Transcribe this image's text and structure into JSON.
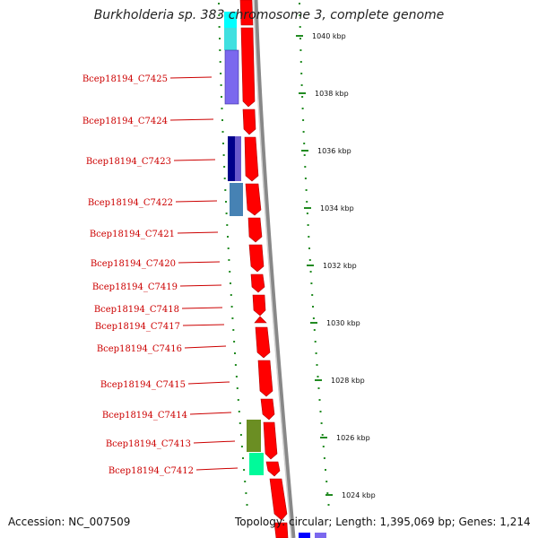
{
  "title": "Burkholderia sp. 383 chromosome 3, complete genome",
  "footer": {
    "accession": "Accession: NC_007509",
    "topology": "Topology: circular; Length: 1,395,069 bp; Genes: 1,214"
  },
  "gene_labels": [
    "Bcep18194_C7425",
    "Bcep18194_C7424",
    "Bcep18194_C7423",
    "Bcep18194_C7422",
    "Bcep18194_C7421",
    "Bcep18194_C7420",
    "Bcep18194_C7419",
    "Bcep18194_C7418",
    "Bcep18194_C7417",
    "Bcep18194_C7416",
    "Bcep18194_C7415",
    "Bcep18194_C7414",
    "Bcep18194_C7413",
    "Bcep18194_C7412"
  ],
  "scale_labels": [
    "1040 kbp",
    "1038 kbp",
    "1036 kbp",
    "1034 kbp",
    "1032 kbp",
    "1030 kbp",
    "1028 kbp",
    "1026 kbp",
    "1024 kbp"
  ],
  "colors": {
    "cds": "#ff0000",
    "label": "#cc0000",
    "backbone": "#888888",
    "ticks": "#228b22"
  }
}
